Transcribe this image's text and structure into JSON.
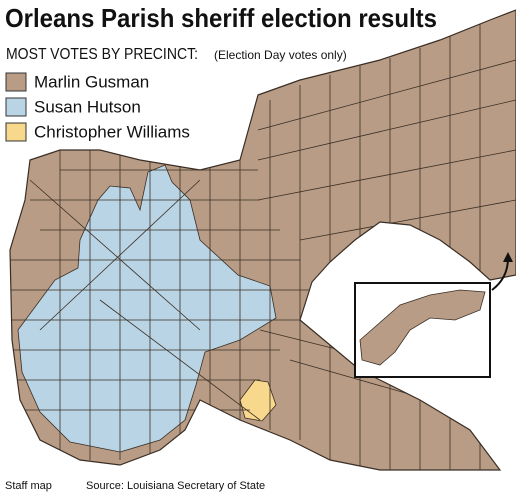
{
  "header": {
    "title": "Orleans Parish sheriff election results",
    "subtitle": "MOST VOTES BY PRECINCT:",
    "note": "(Election Day votes only)"
  },
  "legend": [
    {
      "name": "Marlin Gusman",
      "color": "#b89c85"
    },
    {
      "name": "Susan Hutson",
      "color": "#b9d4e4"
    },
    {
      "name": "Christopher Williams",
      "color": "#f8d88c"
    }
  ],
  "footer": {
    "credit": "Staff map",
    "source": "Source: Louisiana Secretary of State"
  }
}
